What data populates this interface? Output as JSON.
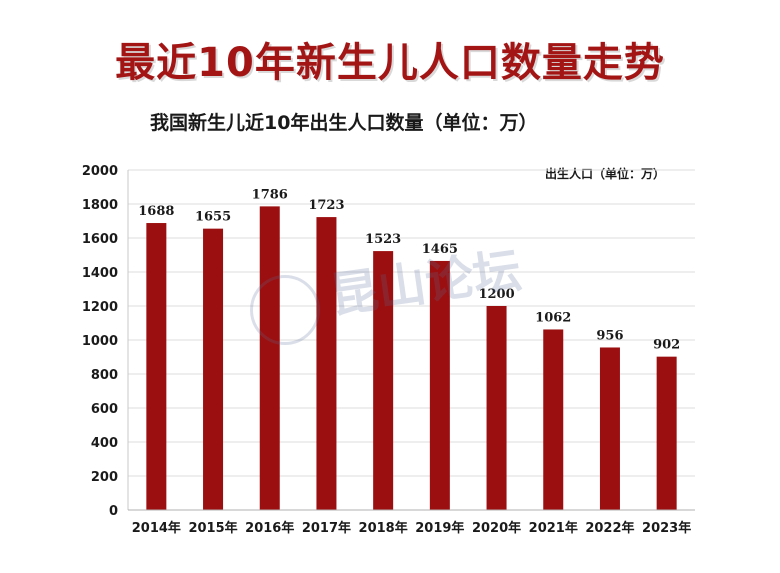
{
  "header": {
    "main_title": "最近10年新生儿人口数量走势"
  },
  "watermark": {
    "text": "昆山论坛"
  },
  "colors": {
    "bar": "#9b0f10",
    "title": "#a31515",
    "grid": "#dcdcdc"
  },
  "chart_data": {
    "type": "bar",
    "title": "我国新生儿近10年出生人口数量（单位：万）",
    "legend": "出生人口（单位：万）",
    "legend_position": "top-right",
    "categories": [
      "2014年",
      "2015年",
      "2016年",
      "2017年",
      "2018年",
      "2019年",
      "2020年",
      "2021年",
      "2022年",
      "2023年"
    ],
    "series": [
      {
        "name": "出生人口（单位：万）",
        "values": [
          1688,
          1655,
          1786,
          1723,
          1523,
          1465,
          1200,
          1062,
          956,
          902
        ]
      }
    ],
    "value_labels": [
      "1688",
      "1655",
      "1786",
      "1723",
      "1523",
      "1465",
      "1200",
      "1062",
      "956",
      "902"
    ],
    "y_ticks": [
      "0",
      "200",
      "400",
      "600",
      "800",
      "1000",
      "1200",
      "1400",
      "1600",
      "1800",
      "2000"
    ],
    "ylim": [
      0,
      2000
    ],
    "grid": true
  }
}
